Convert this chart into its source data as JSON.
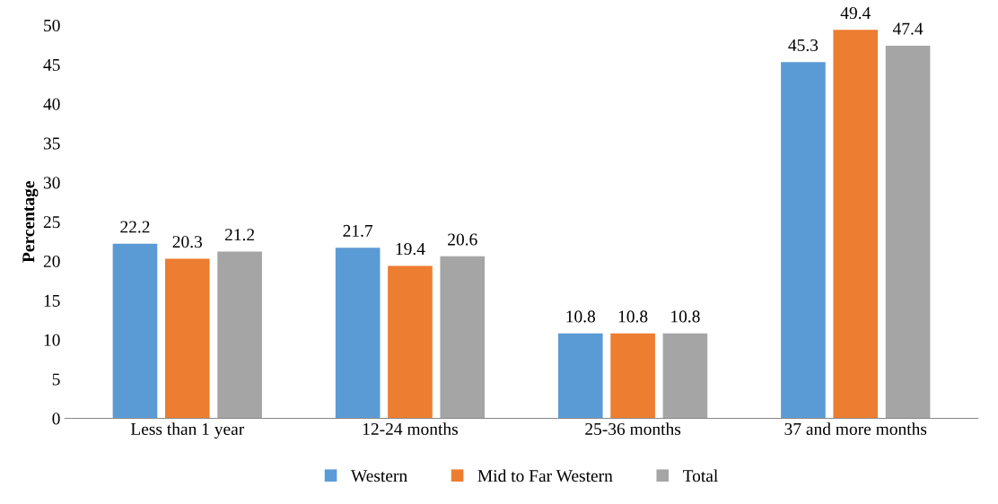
{
  "chart_data": {
    "type": "bar",
    "ylabel": "Percentage",
    "categories": [
      "Less than 1 year",
      "12-24 months",
      "25-36 months",
      "37 and more months"
    ],
    "series": [
      {
        "name": "Western",
        "color": "#5b9bd5",
        "values": [
          22.2,
          21.7,
          10.8,
          45.3
        ]
      },
      {
        "name": "Mid to Far Western",
        "color": "#ed7d31",
        "values": [
          20.3,
          19.4,
          10.8,
          49.4
        ]
      },
      {
        "name": "Total",
        "color": "#a5a5a5",
        "values": [
          21.2,
          20.6,
          10.8,
          47.4
        ]
      }
    ],
    "ylim": [
      0,
      50
    ],
    "yticks": [
      0,
      5,
      10,
      15,
      20,
      25,
      30,
      35,
      40,
      45,
      50
    ],
    "data_labels": true,
    "grid": false,
    "legend": "bottom"
  }
}
